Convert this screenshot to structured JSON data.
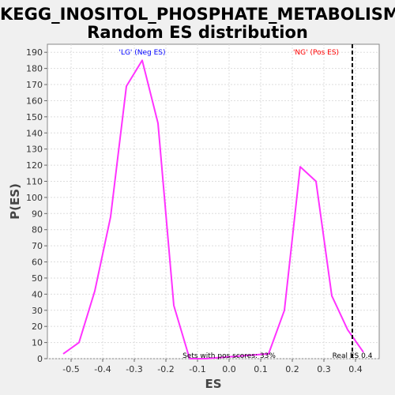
{
  "chart_data": {
    "type": "line",
    "title": "KEGG_INOSITOL_PHOSPHATE_METABOLISM: Random ES distribution",
    "title_lines": [
      "KEGG_INOSITOL_PHOSPHATE_METABOLISM:",
      "Random ES distribution"
    ],
    "xlabel": "ES",
    "ylabel": "P(ES)",
    "xlim": [
      -0.575,
      0.475
    ],
    "ylim": [
      0,
      195
    ],
    "x_ticks": [
      -0.5,
      -0.4,
      -0.3,
      -0.2,
      -0.1,
      0.0,
      0.1,
      0.2,
      0.3,
      0.4
    ],
    "x_tick_labels": [
      "-0.5",
      "-0.4",
      "-0.3",
      "-0.2",
      "-0.1",
      "0.0",
      "0.1",
      "0.2",
      "0.3",
      "0.4"
    ],
    "y_ticks": [
      0,
      10,
      20,
      30,
      40,
      50,
      60,
      70,
      80,
      90,
      100,
      110,
      120,
      130,
      140,
      150,
      160,
      170,
      180,
      190
    ],
    "grid": true,
    "series": [
      {
        "color": "#ff33ff",
        "x": [
          -0.525,
          -0.475,
          -0.425,
          -0.375,
          -0.325,
          -0.275,
          -0.225,
          -0.175,
          -0.125,
          -0.075,
          0.125,
          0.175,
          0.225,
          0.275,
          0.325,
          0.375,
          0.425
        ],
        "y": [
          3,
          10,
          42,
          88,
          169,
          185,
          146,
          33,
          0,
          0,
          3,
          30,
          119,
          110,
          39,
          18,
          4
        ]
      }
    ],
    "real_es": 0.39,
    "real_es_label": "Real ES 0.4",
    "annotations": [
      {
        "text": "'LG' (Neg ES)",
        "color": "#0000ff"
      },
      {
        "text": "'NG' (Pos ES)",
        "color": "#ff0000"
      },
      {
        "text": "Sets with pos scores: 33%",
        "color": "#000000"
      }
    ]
  }
}
